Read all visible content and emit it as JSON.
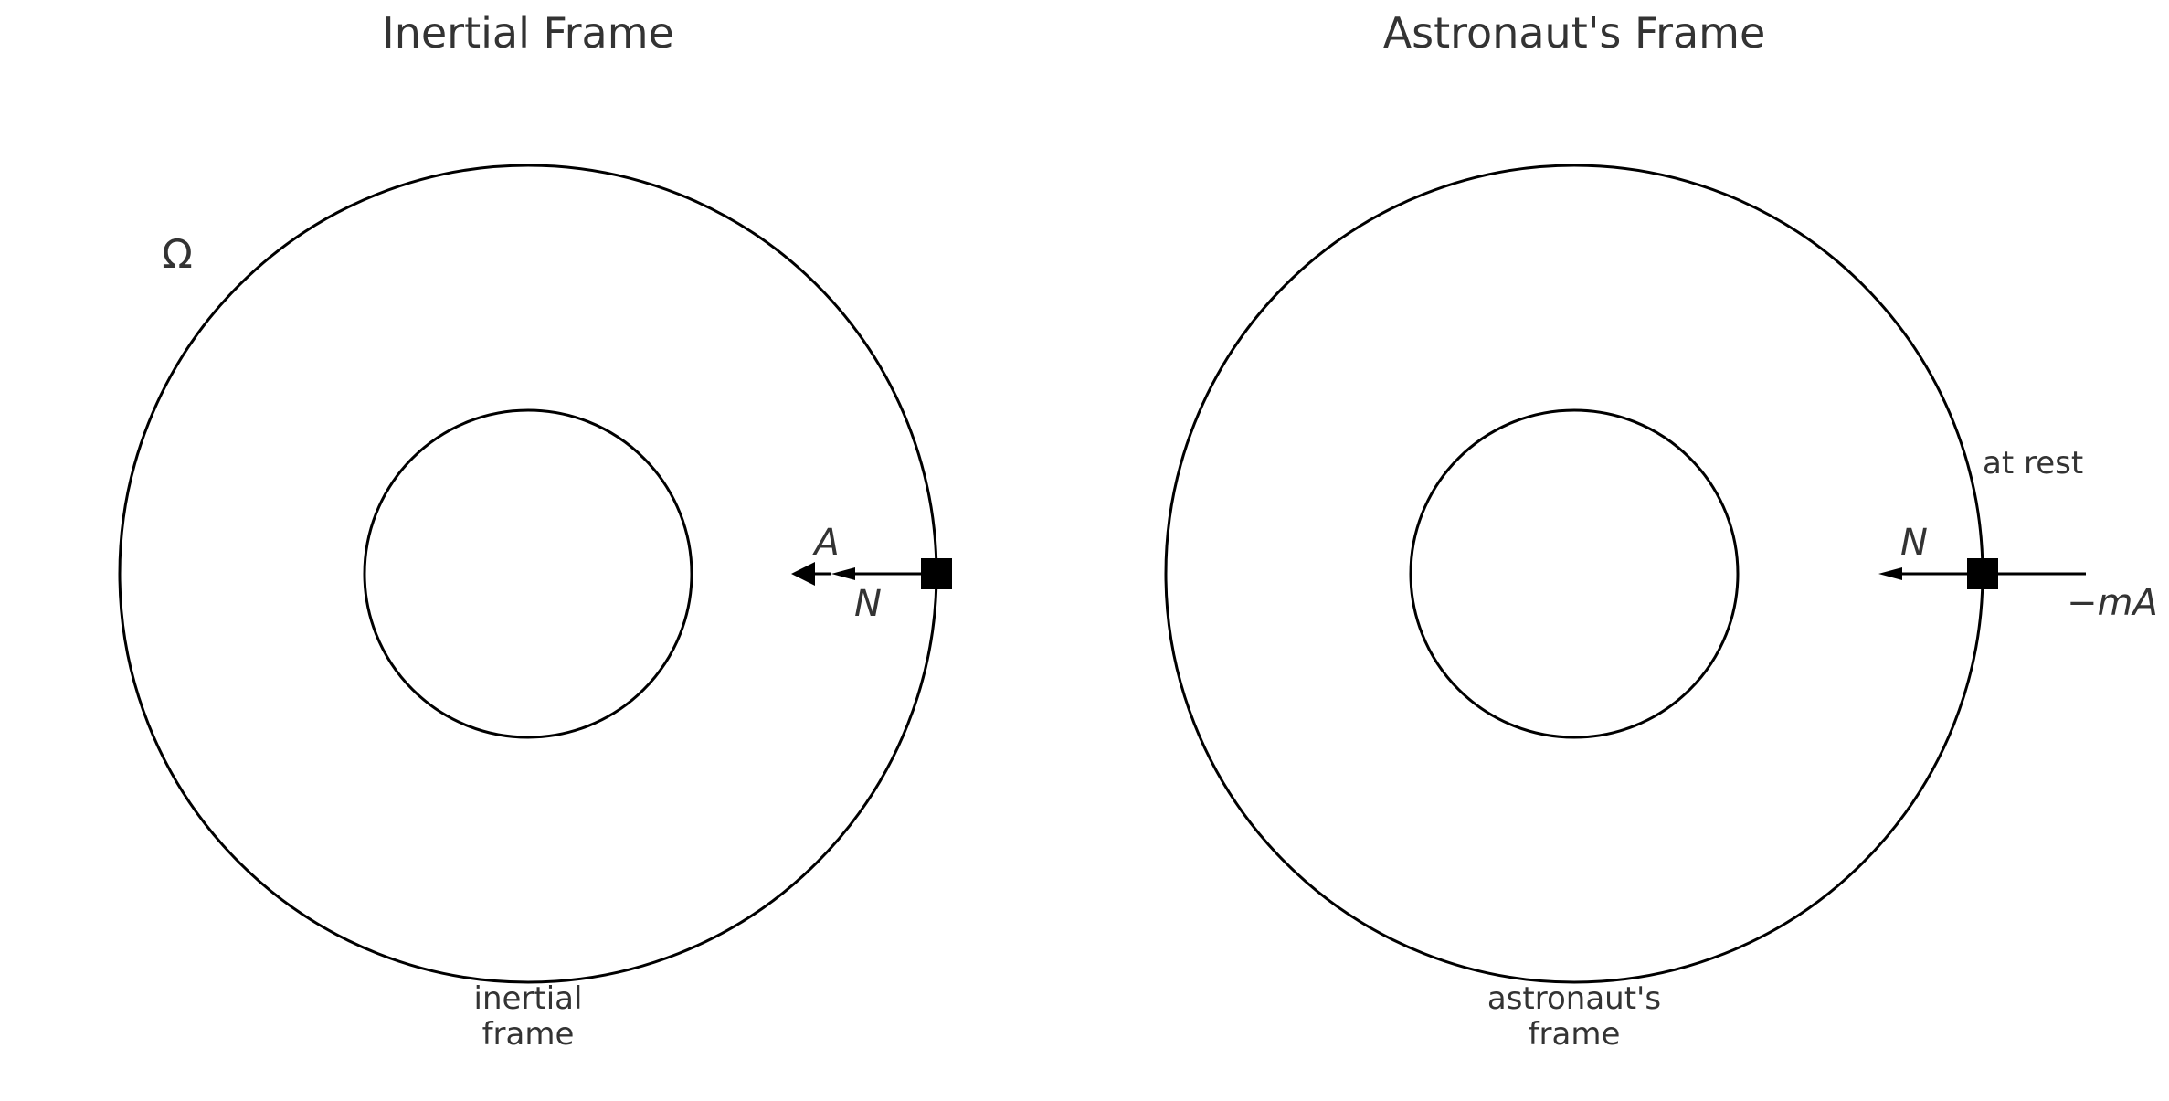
{
  "panels": {
    "inertial": {
      "title": "Inertial Frame",
      "omega_label": "Ω",
      "accel_label": "A",
      "normal_label": "N",
      "caption_line1": "inertial",
      "caption_line2": "frame"
    },
    "astronaut": {
      "title": "Astronaut's Frame",
      "state_label": "at rest",
      "normal_label": "N",
      "fictitious_label": "−mA",
      "caption_line1": "astronaut's",
      "caption_line2": "frame"
    }
  },
  "colors": {
    "text": "#333333",
    "stroke": "#000000",
    "background": "#ffffff"
  }
}
